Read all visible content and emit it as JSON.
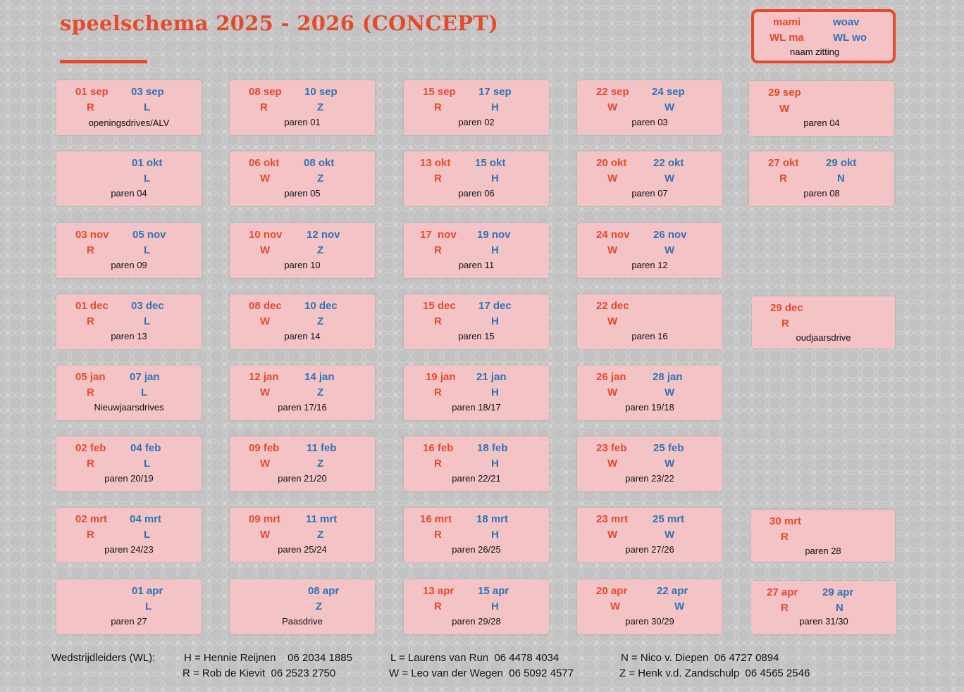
{
  "title": "speelschema 2025 - 2026  (CONCEPT)",
  "legend": {
    "mami": "mami",
    "woav": "woav",
    "wl_ma": "WL ma",
    "wl_wo": "WL wo",
    "naam": "naam zitting"
  },
  "cards": {
    "r0c0": {
      "d1": "01 sep",
      "d2": "03 sep",
      "l1": "R",
      "l2": "L",
      "name": "openingsdrives/ALV"
    },
    "r0c1": {
      "d1": "08 sep",
      "d2": "10 sep",
      "l1": "R",
      "l2": "Z",
      "name": "paren 01"
    },
    "r0c2": {
      "d1": "15 sep",
      "d2": "17 sep",
      "l1": "R",
      "l2": "H",
      "name": "paren 02"
    },
    "r0c3": {
      "d1": "22 sep",
      "d2": "24 sep",
      "l1": "W",
      "l2": "W",
      "name": "paren 03"
    },
    "r0c4": {
      "d1": "29 sep",
      "l1": "W",
      "name": "paren 04"
    },
    "r1c0": {
      "d2": "01 okt",
      "l2": "L",
      "name": "paren 04"
    },
    "r1c1": {
      "d1": "06 okt",
      "d2": "08 okt",
      "l1": "W",
      "l2": "Z",
      "name": "paren 05"
    },
    "r1c2": {
      "d1": "13 okt",
      "d2": "15 okt",
      "l1": "R",
      "l2": "H",
      "name": "paren 06"
    },
    "r1c3": {
      "d1": "20 okt",
      "d2": "22 okt",
      "l1": "W",
      "l2": "W",
      "name": "paren 07"
    },
    "r1c4": {
      "d1": "27 okt",
      "d2": "29 okt",
      "l1": "R",
      "l2": "N",
      "name": "paren 08"
    },
    "r2c0": {
      "d1": "03 nov",
      "d2": "05 nov",
      "l1": "R",
      "l2": "L",
      "name": "paren 09"
    },
    "r2c1": {
      "d1": "10 nov",
      "d2": "12 nov",
      "l1": "W",
      "l2": "Z",
      "name": "paren 10"
    },
    "r2c2": {
      "d1": "17  nov",
      "d2": "19 nov",
      "l1": "R",
      "l2": "H",
      "name": "paren 11"
    },
    "r2c3": {
      "d1": "24 nov",
      "d2": "26 nov",
      "l1": "W",
      "l2": "W",
      "name": "paren 12"
    },
    "r3c0": {
      "d1": "01 dec",
      "d2": "03 dec",
      "l1": "R",
      "l2": "L",
      "name": "paren 13"
    },
    "r3c1": {
      "d1": "08 dec",
      "d2": "10 dec",
      "l1": "W",
      "l2": "Z",
      "name": "paren 14"
    },
    "r3c2": {
      "d1": "15 dec",
      "d2": "17 dec",
      "l1": "R",
      "l2": "H",
      "name": "paren 15"
    },
    "r3c3": {
      "d1": "22 dec",
      "l1": "W",
      "name": "paren 16"
    },
    "r3c4": {
      "d1": "29 dec",
      "l1": "R",
      "name": "oudjaarsdrive"
    },
    "r4c0": {
      "d1": "05 jan",
      "d2": "07 jan",
      "l1": "R",
      "l2": "L",
      "name": "Nieuwjaarsdrives"
    },
    "r4c1": {
      "d1": "12 jan",
      "d2": "14 jan",
      "l1": "W",
      "l2": "Z",
      "name": "paren 17/16"
    },
    "r4c2": {
      "d1": "19 jan",
      "d2": "21 jan",
      "l1": "R",
      "l2": "H",
      "name": "paren 18/17"
    },
    "r4c3": {
      "d1": "26 jan",
      "d2": "28 jan",
      "l1": "W",
      "l2": "W",
      "name": "paren 19/18"
    },
    "r5c0": {
      "d1": "02 feb",
      "d2": "04 feb",
      "l1": "R",
      "l2": "L",
      "name": "paren 20/19"
    },
    "r5c1": {
      "d1": "09 feb",
      "d2": "11 feb",
      "l1": "W",
      "l2": "Z",
      "name": "paren 21/20"
    },
    "r5c2": {
      "d1": "16 feb",
      "d2": "18 feb",
      "l1": "R",
      "l2": "H",
      "name": "paren 22/21"
    },
    "r5c3": {
      "d1": "23 feb",
      "d2": "25 feb",
      "l1": "W",
      "l2": "W",
      "name": "paren 23/22"
    },
    "r6c0": {
      "d1": "02 mrt",
      "d2": "04 mrt",
      "l1": "R",
      "l2": "L",
      "name": "paren 24/23"
    },
    "r6c1": {
      "d1": "09 mrt",
      "d2": "11 mrt",
      "l1": "W",
      "l2": "Z",
      "name": "paren 25/24"
    },
    "r6c2": {
      "d1": "16 mrt",
      "d2": "18 mrt",
      "l1": "R",
      "l2": "H",
      "name": "paren 26/25"
    },
    "r6c3": {
      "d1": "23 mrt",
      "d2": "25 mrt",
      "l1": "W",
      "l2": "W",
      "name": "paren 27/26"
    },
    "r6c4": {
      "d1": "30 mrt",
      "l1": "R",
      "name": "paren 28"
    },
    "r7c0": {
      "d2": "01 apr",
      "l2": "L",
      "name": "paren 27"
    },
    "r7c1": {
      "d2": "08 apr",
      "l2": "Z",
      "name": "Paasdrive"
    },
    "r7c2": {
      "d1": "13 apr",
      "d2": "15 apr",
      "l1": "R",
      "l2": "H",
      "name": "paren 29/28"
    },
    "r7c3": {
      "d1": "20 apr",
      "d2": "22 apr",
      "l1": "W",
      "l2": "W",
      "name": "paren 30/29"
    },
    "r7c4": {
      "d1": "27 apr",
      "d2": "29 apr",
      "l1": "R",
      "l2": "N",
      "name": "paren 31/30"
    }
  },
  "footer": {
    "label": "Wedstrijdleiders (WL):",
    "h": "H = Hennie Reijnen    06 2034 1885",
    "r": "R = Rob de Kievit  06 2523 2750",
    "l": "L = Laurens van Run  06 4478 4034",
    "w": "W = Leo van der Wegen  06 5092 4577",
    "n": "N = Nico v. Diepen  06 4727 0894",
    "z": "Z = Henk v.d. Zandschulp  06 4565 2546"
  },
  "colors": {
    "accent": "#e8492a",
    "blue": "#2e74b5",
    "card": "#f3c3c6"
  }
}
